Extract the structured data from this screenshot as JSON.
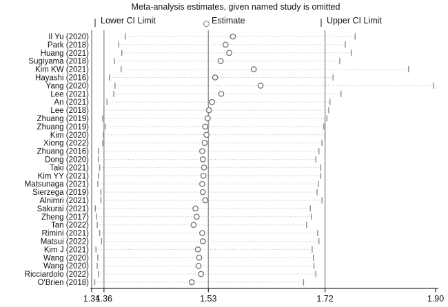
{
  "title": "Meta-analysis estimates, given named study is omitted",
  "legend": {
    "lower_label": "Lower CI Limit",
    "estimate_label": "Estimate",
    "upper_label": "Upper CI Limit"
  },
  "colors": {
    "background": "#ffffff",
    "text": "#111111",
    "axis": "#303030",
    "reference_line": "#999999",
    "frame_line": "#8c8c8c",
    "ci_tick": "#8a8a8a",
    "dotted_line": "#b3b3b3",
    "estimate_stroke": "#707070",
    "estimate_fill": "#ffffff"
  },
  "chart_data": {
    "type": "scatter",
    "subtype": "leave-one-out-sensitivity-forest",
    "title": "Meta-analysis estimates, given named study is omitted",
    "xlabel": "",
    "ylabel": "",
    "xlim": [
      1.34,
      1.9
    ],
    "x_tick_labels": [
      "1.34",
      "1.36",
      "1.53",
      "1.72",
      "1.90"
    ],
    "x_tick_values": [
      1.34,
      1.36,
      1.53,
      1.72,
      1.9
    ],
    "reference_lines": [
      1.36,
      1.53,
      1.72
    ],
    "grid": false,
    "legend_position": "top",
    "studies": [
      {
        "label": "Il Yu (2020)",
        "lower": 1.395,
        "estimate": 1.57,
        "upper": 1.769
      },
      {
        "label": "Park (2018)",
        "lower": 1.384,
        "estimate": 1.558,
        "upper": 1.753
      },
      {
        "label": "Huang (2021)",
        "lower": 1.389,
        "estimate": 1.564,
        "upper": 1.763
      },
      {
        "label": "Sugiyama (2018)",
        "lower": 1.377,
        "estimate": 1.55,
        "upper": 1.744
      },
      {
        "label": "Kim KW (2021)",
        "lower": 1.388,
        "estimate": 1.604,
        "upper": 1.856
      },
      {
        "label": "Hayashi (2016)",
        "lower": 1.369,
        "estimate": 1.541,
        "upper": 1.733
      },
      {
        "label": "Yang (2020)",
        "lower": 1.378,
        "estimate": 1.615,
        "upper": 1.897
      },
      {
        "label": "Lee (2021)",
        "lower": 1.376,
        "estimate": 1.551,
        "upper": 1.746
      },
      {
        "label": "An (2021)",
        "lower": 1.365,
        "estimate": 1.536,
        "upper": 1.728
      },
      {
        "label": "Lee (2018)",
        "lower": 1.36,
        "estimate": 1.531,
        "upper": 1.726
      },
      {
        "label": "Zhuang (2019)",
        "lower": 1.358,
        "estimate": 1.529,
        "upper": 1.723
      },
      {
        "label": "Zhuang (2019)",
        "lower": 1.362,
        "estimate": 1.525,
        "upper": 1.718
      },
      {
        "label": "Kim (2020)",
        "lower": 1.359,
        "estimate": 1.527,
        "upper": 1.72
      },
      {
        "label": "Xiong (2022)",
        "lower": 1.358,
        "estimate": 1.524,
        "upper": 1.715
      },
      {
        "label": "Zhuang (2016)",
        "lower": 1.351,
        "estimate": 1.52,
        "upper": 1.71
      },
      {
        "label": "Dong (2020)",
        "lower": 1.351,
        "estimate": 1.521,
        "upper": 1.705
      },
      {
        "label": "Taki (2021)",
        "lower": 1.353,
        "estimate": 1.523,
        "upper": 1.713
      },
      {
        "label": "Kim YY (2021)",
        "lower": 1.351,
        "estimate": 1.522,
        "upper": 1.713
      },
      {
        "label": "Matsunaga (2021)",
        "lower": 1.35,
        "estimate": 1.52,
        "upper": 1.709
      },
      {
        "label": "Sierzega (2019)",
        "lower": 1.355,
        "estimate": 1.521,
        "upper": 1.707
      },
      {
        "label": "Alnimri (2021)",
        "lower": 1.355,
        "estimate": 1.525,
        "upper": 1.715
      },
      {
        "label": "Sakurai (2021)",
        "lower": 1.346,
        "estimate": 1.509,
        "upper": 1.696
      },
      {
        "label": "Zheng (2017)",
        "lower": 1.348,
        "estimate": 1.511,
        "upper": 1.698
      },
      {
        "label": "Tan (2022)",
        "lower": 1.349,
        "estimate": 1.506,
        "upper": 1.69
      },
      {
        "label": "Rimini (2021)",
        "lower": 1.353,
        "estimate": 1.52,
        "upper": 1.708
      },
      {
        "label": "Matsui (2022)",
        "lower": 1.356,
        "estimate": 1.521,
        "upper": 1.71
      },
      {
        "label": "Kim J (2021)",
        "lower": 1.347,
        "estimate": 1.513,
        "upper": 1.699
      },
      {
        "label": "Wang (2020)",
        "lower": 1.35,
        "estimate": 1.515,
        "upper": 1.701
      },
      {
        "label": "Wang (2020)",
        "lower": 1.349,
        "estimate": 1.514,
        "upper": 1.702
      },
      {
        "label": "Ricciardolo (2022)",
        "lower": 1.351,
        "estimate": 1.518,
        "upper": 1.705
      },
      {
        "label": "O'Brien (2018)",
        "lower": 1.345,
        "estimate": 1.503,
        "upper": 1.685
      }
    ]
  }
}
